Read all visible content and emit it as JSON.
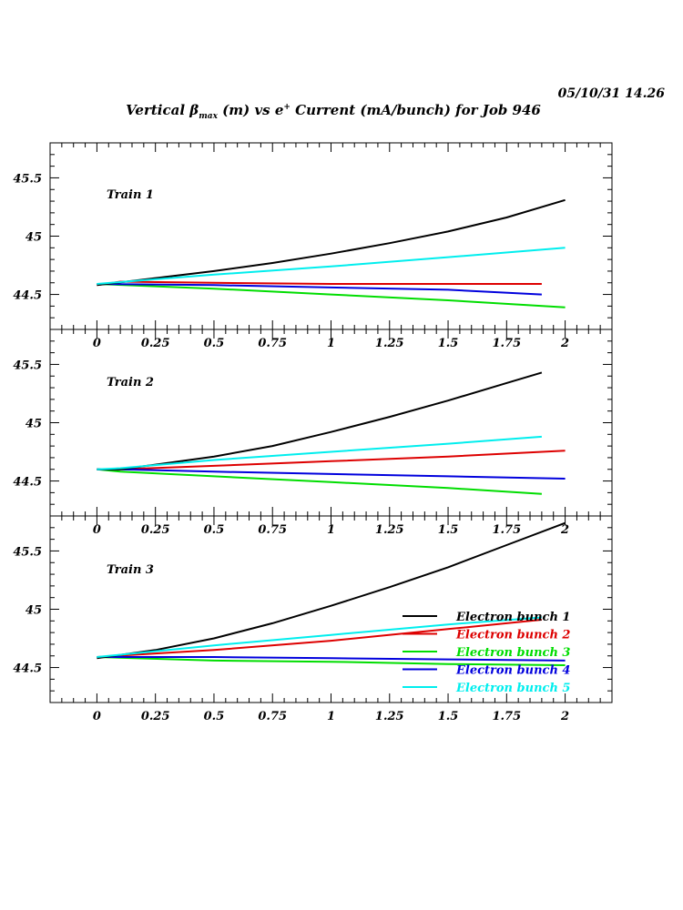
{
  "header": {
    "timestamp": "05/10/31   14.26",
    "title_pre": "Vertical β",
    "title_sub": "max",
    "title_mid": " (m) vs e",
    "title_sup": "+",
    "title_post": " Current (mA/bunch) for Job 946"
  },
  "chart_data": [
    {
      "type": "line",
      "label": "Train 1",
      "xlim": [
        -0.2,
        2.2
      ],
      "ylim": [
        44.2,
        45.8
      ],
      "xticks": [
        0,
        0.25,
        0.5,
        0.75,
        1,
        1.25,
        1.5,
        1.75,
        2
      ],
      "xtick_labels": [
        "0",
        "0.25",
        "0.5",
        "0.75",
        "1",
        "1.25",
        "1.5",
        "1.75",
        "2"
      ],
      "yticks": [
        44.5,
        45,
        45.5
      ],
      "ytick_labels": [
        "44.5",
        "45",
        "45.5"
      ],
      "series": [
        {
          "name": "Electron bunch 1",
          "color": "#000000",
          "x": [
            0,
            0.25,
            0.5,
            0.75,
            1,
            1.25,
            1.5,
            1.75,
            2
          ],
          "y": [
            44.58,
            44.64,
            44.7,
            44.77,
            44.85,
            44.94,
            45.04,
            45.16,
            45.31
          ]
        },
        {
          "name": "Electron bunch 2",
          "color": "#dd0000",
          "x": [
            0,
            0.1,
            0.5,
            1,
            1.5,
            1.9
          ],
          "y": [
            44.58,
            44.61,
            44.6,
            44.59,
            44.59,
            44.59
          ]
        },
        {
          "name": "Electron bunch 3",
          "color": "#00dd00",
          "x": [
            0,
            0.5,
            1,
            1.5,
            2
          ],
          "y": [
            44.59,
            44.55,
            44.5,
            44.45,
            44.39
          ]
        },
        {
          "name": "Electron bunch 4",
          "color": "#0000dd",
          "x": [
            0,
            0.5,
            1,
            1.5,
            1.9
          ],
          "y": [
            44.59,
            44.58,
            44.56,
            44.54,
            44.5
          ]
        },
        {
          "name": "Electron bunch 5",
          "color": "#00eeee",
          "x": [
            0,
            0.5,
            1,
            1.5,
            2
          ],
          "y": [
            44.59,
            44.67,
            44.74,
            44.82,
            44.9
          ]
        }
      ]
    },
    {
      "type": "line",
      "label": "Train 2",
      "xlim": [
        -0.2,
        2.2
      ],
      "ylim": [
        44.2,
        45.8
      ],
      "xticks": [
        0,
        0.25,
        0.5,
        0.75,
        1,
        1.25,
        1.5,
        1.75,
        2
      ],
      "xtick_labels": [
        "0",
        "0.25",
        "0.5",
        "0.75",
        "1",
        "1.25",
        "1.5",
        "1.75",
        "2"
      ],
      "yticks": [
        44.5,
        45,
        45.5
      ],
      "ytick_labels": [
        "44.5",
        "45",
        "45.5"
      ],
      "series": [
        {
          "name": "Electron bunch 1",
          "color": "#000000",
          "x": [
            0,
            0.1,
            0.25,
            0.5,
            0.75,
            1,
            1.25,
            1.5,
            1.75,
            1.9
          ],
          "y": [
            44.6,
            44.6,
            44.64,
            44.71,
            44.8,
            44.92,
            45.05,
            45.19,
            45.34,
            45.43
          ]
        },
        {
          "name": "Electron bunch 2",
          "color": "#dd0000",
          "x": [
            0,
            0.1,
            0.5,
            1,
            1.5,
            2
          ],
          "y": [
            44.6,
            44.6,
            44.63,
            44.67,
            44.71,
            44.76
          ]
        },
        {
          "name": "Electron bunch 3",
          "color": "#00dd00",
          "x": [
            0,
            0.1,
            0.5,
            1,
            1.5,
            1.9
          ],
          "y": [
            44.6,
            44.58,
            44.54,
            44.49,
            44.44,
            44.39
          ]
        },
        {
          "name": "Electron bunch 4",
          "color": "#0000dd",
          "x": [
            0,
            0.1,
            0.5,
            1,
            1.5,
            2
          ],
          "y": [
            44.6,
            44.6,
            44.58,
            44.56,
            44.54,
            44.52
          ]
        },
        {
          "name": "Electron bunch 5",
          "color": "#00eeee",
          "x": [
            0,
            0.1,
            0.5,
            1,
            1.5,
            1.9
          ],
          "y": [
            44.6,
            44.61,
            44.68,
            44.75,
            44.82,
            44.88
          ]
        }
      ]
    },
    {
      "type": "line",
      "label": "Train 3",
      "xlim": [
        -0.2,
        2.2
      ],
      "ylim": [
        44.2,
        45.8
      ],
      "xticks": [
        0,
        0.25,
        0.5,
        0.75,
        1,
        1.25,
        1.5,
        1.75,
        2
      ],
      "xtick_labels": [
        "0",
        "0.25",
        "0.5",
        "0.75",
        "1",
        "1.25",
        "1.5",
        "1.75",
        "2"
      ],
      "yticks": [
        44.5,
        45,
        45.5
      ],
      "ytick_labels": [
        "44.5",
        "45",
        "45.5"
      ],
      "series": [
        {
          "name": "Electron bunch 1",
          "color": "#000000",
          "x": [
            0,
            0.25,
            0.5,
            0.75,
            1,
            1.25,
            1.5,
            1.75,
            2
          ],
          "y": [
            44.58,
            44.65,
            44.75,
            44.88,
            45.03,
            45.19,
            45.36,
            45.55,
            45.74
          ]
        },
        {
          "name": "Electron bunch 2",
          "color": "#dd0000",
          "x": [
            0,
            0.5,
            1,
            1.5,
            1.9
          ],
          "y": [
            44.59,
            44.65,
            44.73,
            44.83,
            44.91
          ]
        },
        {
          "name": "Electron bunch 3",
          "color": "#00dd00",
          "x": [
            0,
            0.5,
            1,
            1.5,
            2
          ],
          "y": [
            44.59,
            44.56,
            44.55,
            44.53,
            44.52
          ]
        },
        {
          "name": "Electron bunch 4",
          "color": "#0000dd",
          "x": [
            0,
            0.5,
            1,
            1.5,
            2
          ],
          "y": [
            44.59,
            44.59,
            44.58,
            44.57,
            44.56
          ]
        },
        {
          "name": "Electron bunch 5",
          "color": "#00eeee",
          "x": [
            0,
            0.5,
            1,
            1.5,
            1.9
          ],
          "y": [
            44.59,
            44.69,
            44.78,
            44.87,
            44.93
          ]
        }
      ]
    }
  ],
  "legend": {
    "position": "bottom-right of Train 3 panel",
    "items": [
      {
        "label": "Electron bunch 1",
        "color": "#000000"
      },
      {
        "label": "Electron bunch 2",
        "color": "#dd0000"
      },
      {
        "label": "Electron bunch 3",
        "color": "#00dd00"
      },
      {
        "label": "Electron bunch 4",
        "color": "#0000dd"
      },
      {
        "label": "Electron bunch 5",
        "color": "#00eeee"
      }
    ]
  }
}
